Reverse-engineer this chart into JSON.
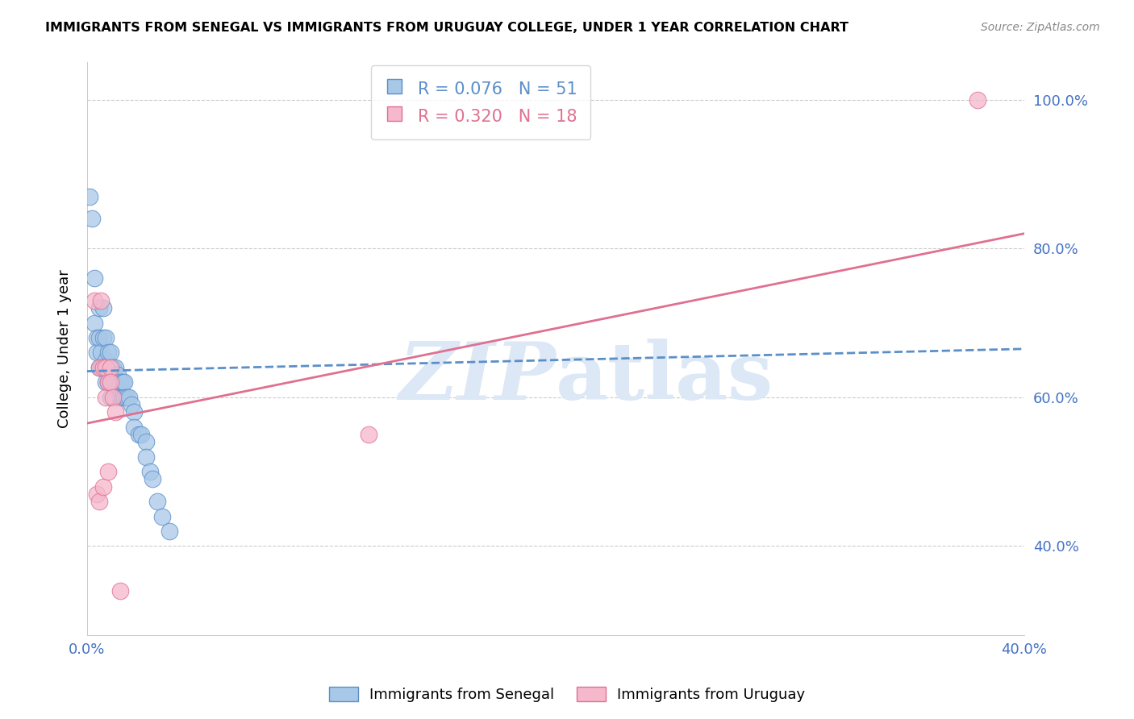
{
  "title": "IMMIGRANTS FROM SENEGAL VS IMMIGRANTS FROM URUGUAY COLLEGE, UNDER 1 YEAR CORRELATION CHART",
  "source": "Source: ZipAtlas.com",
  "ylabel": "College, Under 1 year",
  "legend_blue_r": "R = 0.076",
  "legend_blue_n": "N = 51",
  "legend_pink_r": "R = 0.320",
  "legend_pink_n": "N = 18",
  "legend_blue_label": "Immigrants from Senegal",
  "legend_pink_label": "Immigrants from Uruguay",
  "xlim": [
    0.0,
    0.4
  ],
  "ylim": [
    0.28,
    1.05
  ],
  "xticks": [
    0.0,
    0.1,
    0.2,
    0.3,
    0.4
  ],
  "yticks": [
    0.4,
    0.6,
    0.8,
    1.0
  ],
  "ytick_labels": [
    "40.0%",
    "60.0%",
    "80.0%",
    "100.0%"
  ],
  "xtick_labels": [
    "0.0%",
    "",
    "",
    "",
    "40.0%"
  ],
  "blue_color": "#a8c8e8",
  "blue_edge_color": "#5b8fc9",
  "blue_line_color": "#5b8fc9",
  "pink_color": "#f5b8cc",
  "pink_edge_color": "#e07090",
  "pink_line_color": "#e07090",
  "axis_color": "#4472c4",
  "watermark_color": "#dce8f5",
  "senegal_x": [
    0.001,
    0.002,
    0.003,
    0.003,
    0.004,
    0.004,
    0.005,
    0.005,
    0.005,
    0.006,
    0.006,
    0.007,
    0.007,
    0.007,
    0.008,
    0.008,
    0.008,
    0.009,
    0.009,
    0.009,
    0.01,
    0.01,
    0.01,
    0.01,
    0.011,
    0.011,
    0.012,
    0.012,
    0.012,
    0.013,
    0.013,
    0.014,
    0.014,
    0.015,
    0.015,
    0.016,
    0.016,
    0.017,
    0.018,
    0.019,
    0.02,
    0.02,
    0.022,
    0.023,
    0.025,
    0.025,
    0.027,
    0.028,
    0.03,
    0.032,
    0.035
  ],
  "senegal_y": [
    0.87,
    0.84,
    0.76,
    0.7,
    0.68,
    0.66,
    0.72,
    0.68,
    0.64,
    0.66,
    0.64,
    0.72,
    0.68,
    0.64,
    0.68,
    0.65,
    0.62,
    0.66,
    0.64,
    0.62,
    0.66,
    0.64,
    0.62,
    0.6,
    0.64,
    0.62,
    0.64,
    0.62,
    0.6,
    0.63,
    0.61,
    0.62,
    0.6,
    0.62,
    0.6,
    0.62,
    0.6,
    0.6,
    0.6,
    0.59,
    0.58,
    0.56,
    0.55,
    0.55,
    0.54,
    0.52,
    0.5,
    0.49,
    0.46,
    0.44,
    0.42
  ],
  "uruguay_x": [
    0.003,
    0.004,
    0.005,
    0.005,
    0.006,
    0.007,
    0.007,
    0.008,
    0.008,
    0.009,
    0.009,
    0.01,
    0.01,
    0.011,
    0.012,
    0.014,
    0.12,
    0.38
  ],
  "uruguay_y": [
    0.73,
    0.47,
    0.64,
    0.46,
    0.73,
    0.64,
    0.48,
    0.64,
    0.6,
    0.62,
    0.5,
    0.64,
    0.62,
    0.6,
    0.58,
    0.34,
    0.55,
    1.0
  ],
  "blue_trend_x": [
    0.0,
    0.4
  ],
  "blue_trend_y": [
    0.635,
    0.665
  ],
  "pink_trend_x": [
    0.0,
    0.4
  ],
  "pink_trend_y": [
    0.565,
    0.82
  ]
}
